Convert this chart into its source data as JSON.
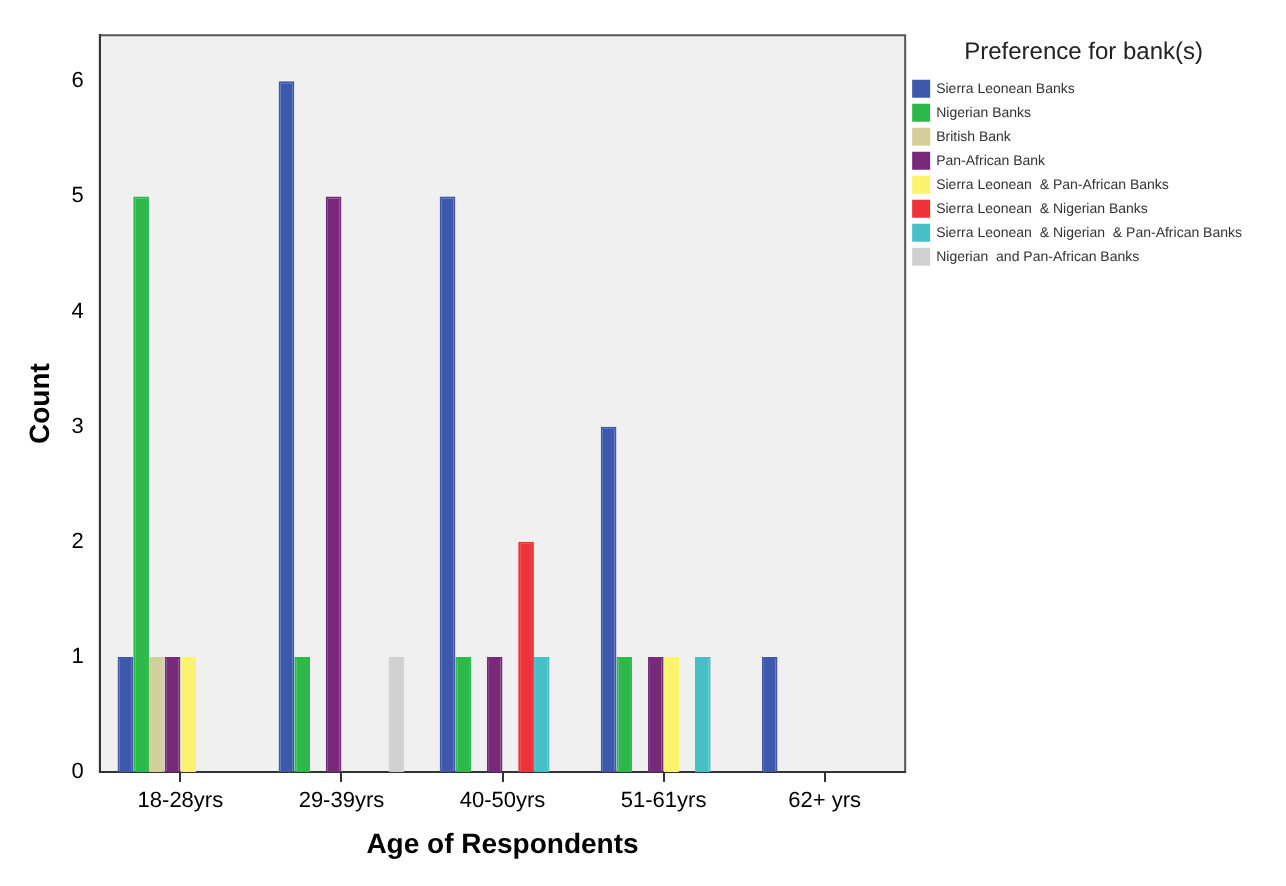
{
  "chart_data": {
    "type": "bar",
    "xlabel": "Age of Respondents",
    "ylabel": "Count",
    "legend_title": "Preference for bank(s)",
    "legend": "right",
    "categories": [
      "18-28yrs",
      "29-39yrs",
      "40-50yrs",
      "51-61yrs",
      "62+ yrs"
    ],
    "ylim": [
      0,
      6.4
    ],
    "yticks": [
      0,
      1,
      2,
      3,
      4,
      5,
      6
    ],
    "grid": false,
    "series": [
      {
        "name": "Sierra Leonean Banks",
        "color": "#3e58ac",
        "values": [
          1,
          6,
          5,
          3,
          1
        ]
      },
      {
        "name": "Nigerian Banks",
        "color": "#2db84a",
        "values": [
          5,
          1,
          1,
          1,
          null
        ]
      },
      {
        "name": "British Bank",
        "color": "#d4cf9a",
        "values": [
          1,
          null,
          null,
          null,
          null
        ]
      },
      {
        "name": "Pan-African Bank",
        "color": "#772a7a",
        "values": [
          1,
          5,
          1,
          1,
          null
        ]
      },
      {
        "name": "Sierra Leonean  & Pan-African Banks",
        "color": "#fbf36c",
        "values": [
          1,
          null,
          null,
          1,
          null
        ]
      },
      {
        "name": "Sierra Leonean  & Nigerian Banks",
        "color": "#ee3338",
        "values": [
          null,
          null,
          2,
          null,
          null
        ]
      },
      {
        "name": "Sierra Leonean  & Nigerian  & Pan-African Banks",
        "color": "#47bfc7",
        "values": [
          null,
          null,
          1,
          1,
          null
        ]
      },
      {
        "name": "Nigerian  and Pan-African Banks",
        "color": "#d0d0d0",
        "values": [
          null,
          1,
          null,
          null,
          null
        ]
      }
    ]
  }
}
